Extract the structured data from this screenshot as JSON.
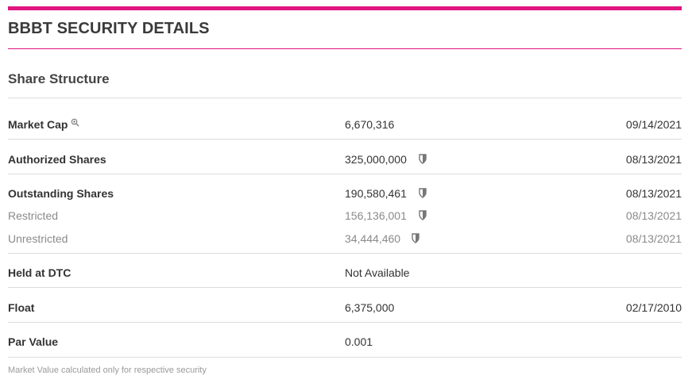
{
  "brand": {
    "accent": "#e0157f"
  },
  "header": {
    "title": "BBBT SECURITY DETAILS"
  },
  "section": {
    "title": "Share Structure"
  },
  "rows": {
    "market_cap": {
      "label": "Market Cap",
      "value": "6,670,316",
      "date": "09/14/2021",
      "icon": "magnifier-icon"
    },
    "authorized": {
      "label": "Authorized Shares",
      "value": "325,000,000",
      "date": "08/13/2021",
      "icon": "shield-icon"
    },
    "outstanding": {
      "label": "Outstanding Shares",
      "value": "190,580,461",
      "date": "08/13/2021",
      "icon": "shield-icon"
    },
    "restricted": {
      "label": "Restricted",
      "value": "156,136,001",
      "date": "08/13/2021",
      "icon": "shield-icon"
    },
    "unrestricted": {
      "label": "Unrestricted",
      "value": "34,444,460",
      "date": "08/13/2021",
      "icon": "shield-icon"
    },
    "held_dtc": {
      "label": "Held at DTC",
      "value": "Not Available",
      "date": ""
    },
    "float": {
      "label": "Float",
      "value": "6,375,000",
      "date": "02/17/2010"
    },
    "par_value": {
      "label": "Par Value",
      "value": "0.001",
      "date": ""
    }
  },
  "footnote": "Market Value calculated only for respective security"
}
